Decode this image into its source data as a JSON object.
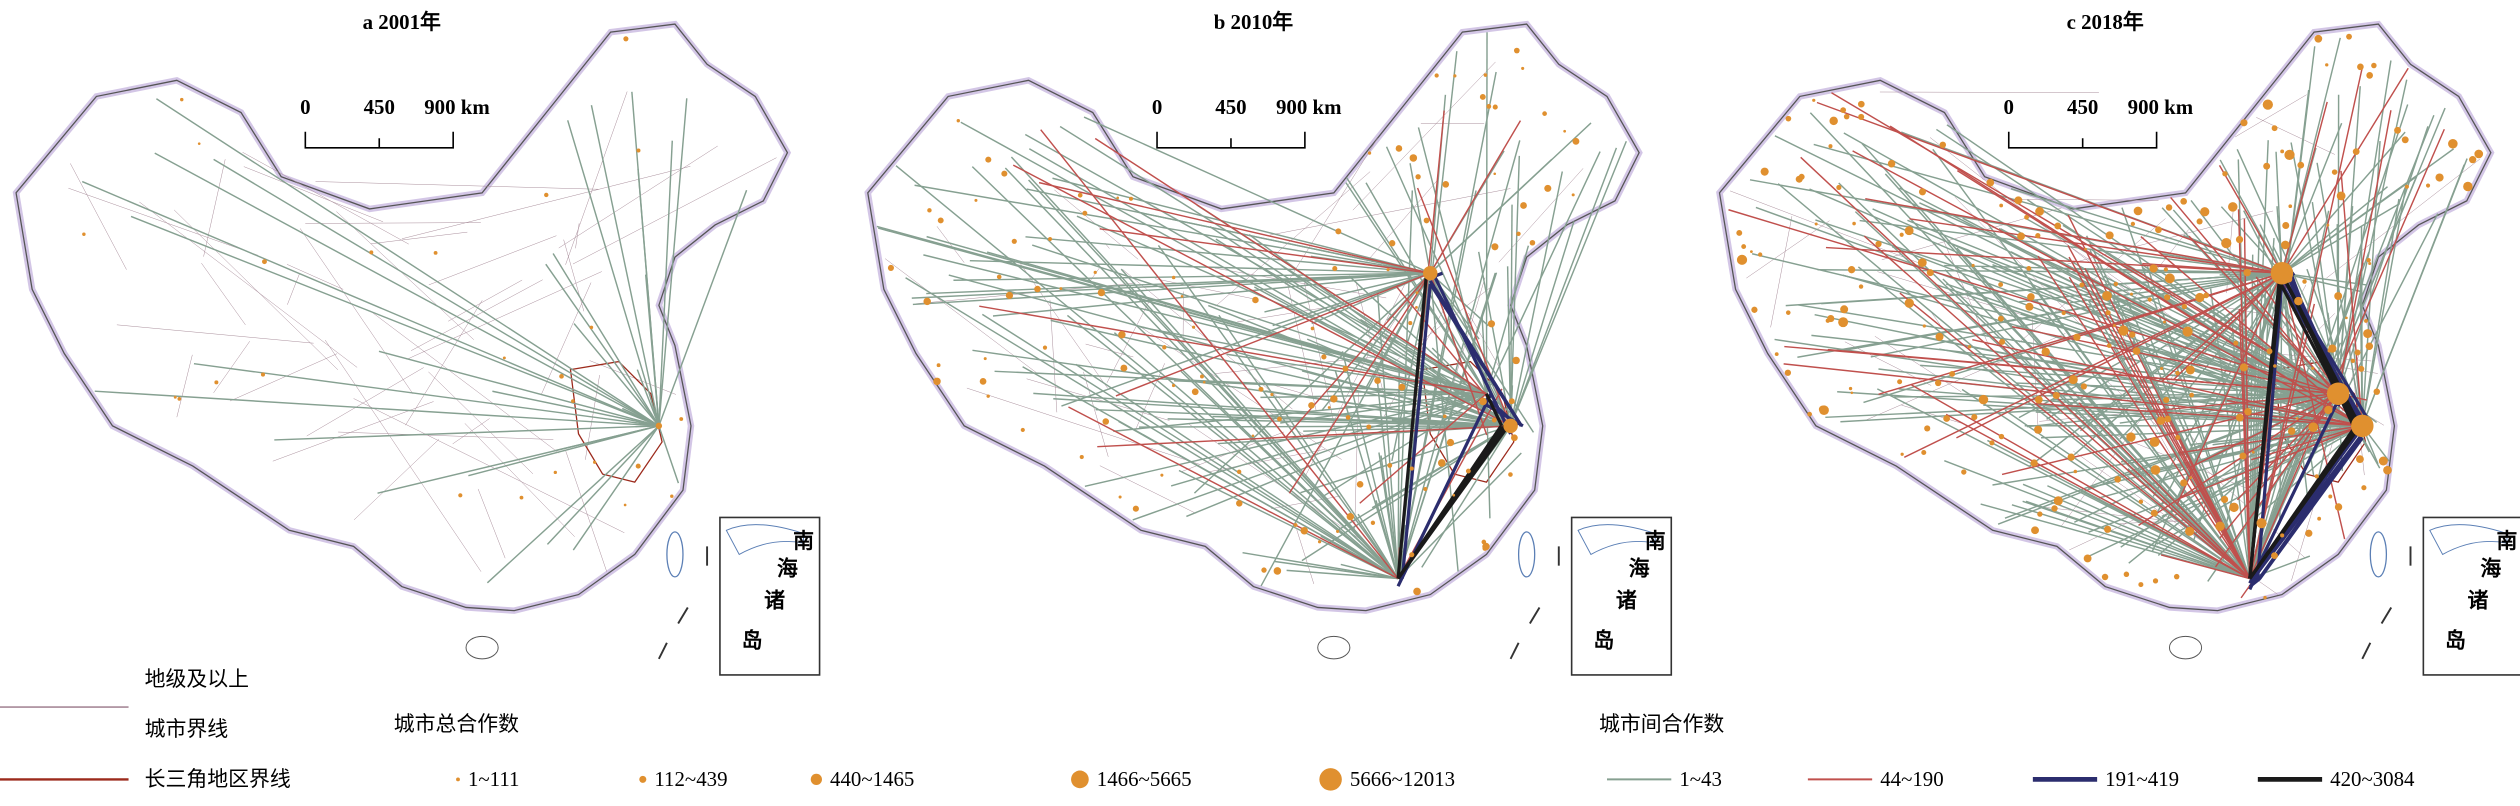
{
  "panels": [
    {
      "title": "a 2001年",
      "scale_labels": [
        "0",
        "450",
        "900 km"
      ],
      "inset_labels": [
        "南",
        "海",
        "诸",
        "岛"
      ]
    },
    {
      "title": "b 2010年",
      "scale_labels": [
        "0",
        "450",
        "900 km"
      ],
      "inset_labels": [
        "南",
        "海",
        "诸",
        "岛"
      ]
    },
    {
      "title": "c 2018年",
      "scale_labels": [
        "0",
        "450",
        "900 km"
      ],
      "inset_labels": [
        "南",
        "海",
        "诸",
        "岛"
      ]
    }
  ],
  "legend": {
    "boundaries": [
      {
        "label_lines": [
          "地级及以上",
          "城市界线"
        ],
        "color": "#a78a98"
      },
      {
        "label_lines": [
          "长三角地区界线"
        ],
        "color": "#9c2a1c"
      }
    ],
    "nodes": {
      "title": "城市总合作数",
      "color": "#e0902f",
      "items": [
        "1~111",
        "112~439",
        "440~1465",
        "1466~5665",
        "5666~12013"
      ]
    },
    "links": {
      "title": "城市间合作数",
      "items": [
        {
          "label": "1~43",
          "color": "#86a091"
        },
        {
          "label": "44~190",
          "color": "#c0504d"
        },
        {
          "label": "191~419",
          "color": "#2b2d6e"
        },
        {
          "label": "420~3084",
          "color": "#1a1a1a"
        }
      ]
    }
  }
}
